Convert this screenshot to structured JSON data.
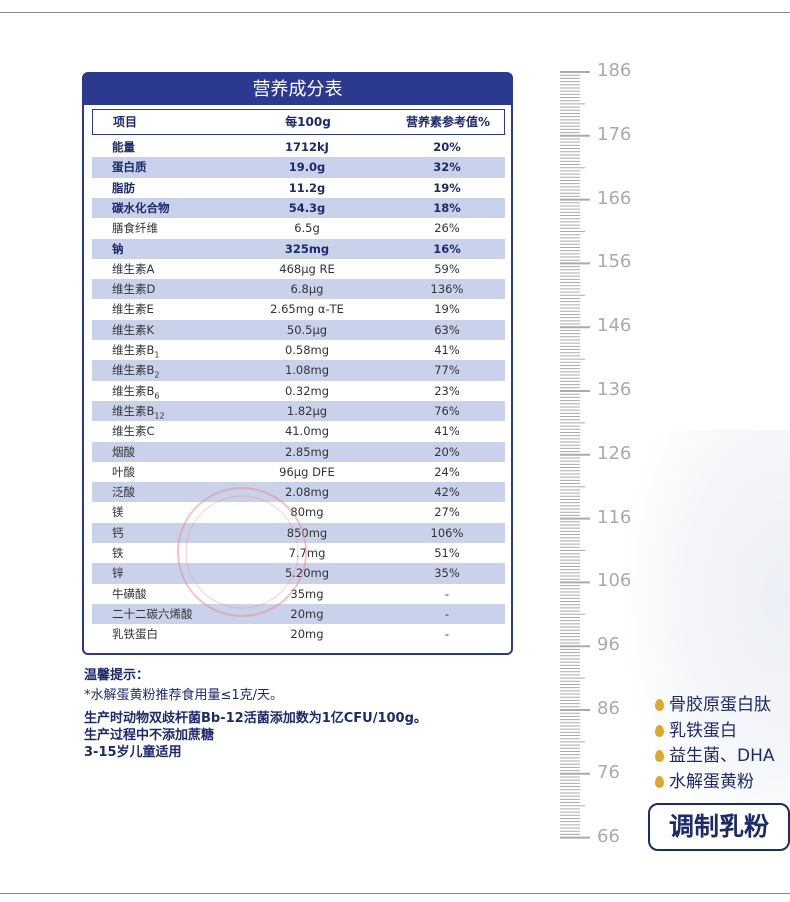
{
  "table": {
    "title": "营养成分表",
    "headers": [
      "项目",
      "每100g",
      "营养素参考值%"
    ],
    "rows": [
      {
        "name": "能量",
        "amount": "1712kJ",
        "nrv": "20%",
        "bold": true
      },
      {
        "name": "蛋白质",
        "amount": "19.0g",
        "nrv": "32%",
        "bold": true
      },
      {
        "name": "脂肪",
        "amount": "11.2g",
        "nrv": "19%",
        "bold": true
      },
      {
        "name": "碳水化合物",
        "amount": "54.3g",
        "nrv": "18%",
        "bold": true
      },
      {
        "name": "膳食纤维",
        "amount": "6.5g",
        "nrv": "26%"
      },
      {
        "name": "钠",
        "amount": "325mg",
        "nrv": "16%",
        "bold": true
      },
      {
        "name": "维生素A",
        "amount": "468μg RE",
        "nrv": "59%"
      },
      {
        "name": "维生素D",
        "amount": "6.8μg",
        "nrv": "136%"
      },
      {
        "name": "维生素E",
        "amount": "2.65mg α-TE",
        "nrv": "19%"
      },
      {
        "name": "维生素K",
        "amount": "50.5μg",
        "nrv": "63%"
      },
      {
        "name": "维生素B",
        "sub": "1",
        "amount": "0.58mg",
        "nrv": "41%"
      },
      {
        "name": "维生素B",
        "sub": "2",
        "amount": "1.08mg",
        "nrv": "77%"
      },
      {
        "name": "维生素B",
        "sub": "6",
        "amount": "0.32mg",
        "nrv": "23%"
      },
      {
        "name": "维生素B",
        "sub": "12",
        "amount": "1.82μg",
        "nrv": "76%"
      },
      {
        "name": "维生素C",
        "amount": "41.0mg",
        "nrv": "41%"
      },
      {
        "name": "烟酸",
        "amount": "2.85mg",
        "nrv": "20%"
      },
      {
        "name": "叶酸",
        "amount": "96μg DFE",
        "nrv": "24%"
      },
      {
        "name": "泛酸",
        "amount": "2.08mg",
        "nrv": "42%"
      },
      {
        "name": "镁",
        "amount": "80mg",
        "nrv": "27%"
      },
      {
        "name": "钙",
        "amount": "850mg",
        "nrv": "106%"
      },
      {
        "name": "铁",
        "amount": "7.7mg",
        "nrv": "51%"
      },
      {
        "name": "锌",
        "amount": "5.20mg",
        "nrv": "35%"
      },
      {
        "name": "牛磺酸",
        "amount": "35mg",
        "nrv": "-"
      },
      {
        "name": "二十二碳六烯酸",
        "amount": "20mg",
        "nrv": "-"
      },
      {
        "name": "乳铁蛋白",
        "amount": "20mg",
        "nrv": "-"
      }
    ]
  },
  "notes": [
    "温馨提示：",
    "*水解蛋黄粉推荐食用量≤1克/天。",
    "生产时动物双歧杆菌Bb-12活菌添加数为1亿CFU/100g。",
    "生产过程中不添加蔗糖",
    "3-15岁儿童适用"
  ],
  "ruler": [
    "186",
    "176",
    "166",
    "156",
    "146",
    "136",
    "126",
    "116",
    "106",
    "96",
    "86",
    "76",
    "66"
  ],
  "features": [
    "骨胶原蛋白肽",
    "乳铁蛋白",
    "益生菌、DHA",
    "水解蛋黄粉"
  ],
  "product": "调制乳粉"
}
